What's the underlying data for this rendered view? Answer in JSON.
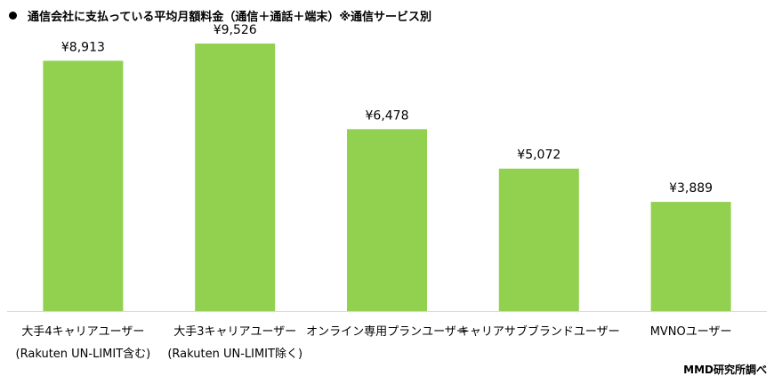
{
  "title": "通信会社に支払っている平均月額料金（通信＋通話＋端末）※通信サービス別",
  "source": "MMD研究所調べ",
  "colors": {
    "bar": "#92d050",
    "axis": "#d9d9d9",
    "text": "#000000"
  },
  "chart_data": {
    "type": "bar",
    "categories": [
      [
        "大手4キャリアユーザー",
        "(Rakuten UN-LIMIT含む)"
      ],
      [
        "大手3キャリアユーザー",
        "(Rakuten UN-LIMIT除く)"
      ],
      [
        "オンライン専用プランユーザー"
      ],
      [
        "キャリアサブブランドユーザー"
      ],
      [
        "MVNOユーザー"
      ]
    ],
    "values": [
      8913,
      9526,
      6478,
      5072,
      3889
    ],
    "data_labels": [
      "¥8,913",
      "¥9,526",
      "¥6,478",
      "¥5,072",
      "¥3,889"
    ],
    "ylim": [
      0,
      10000
    ],
    "grid": false,
    "legend": "none"
  }
}
